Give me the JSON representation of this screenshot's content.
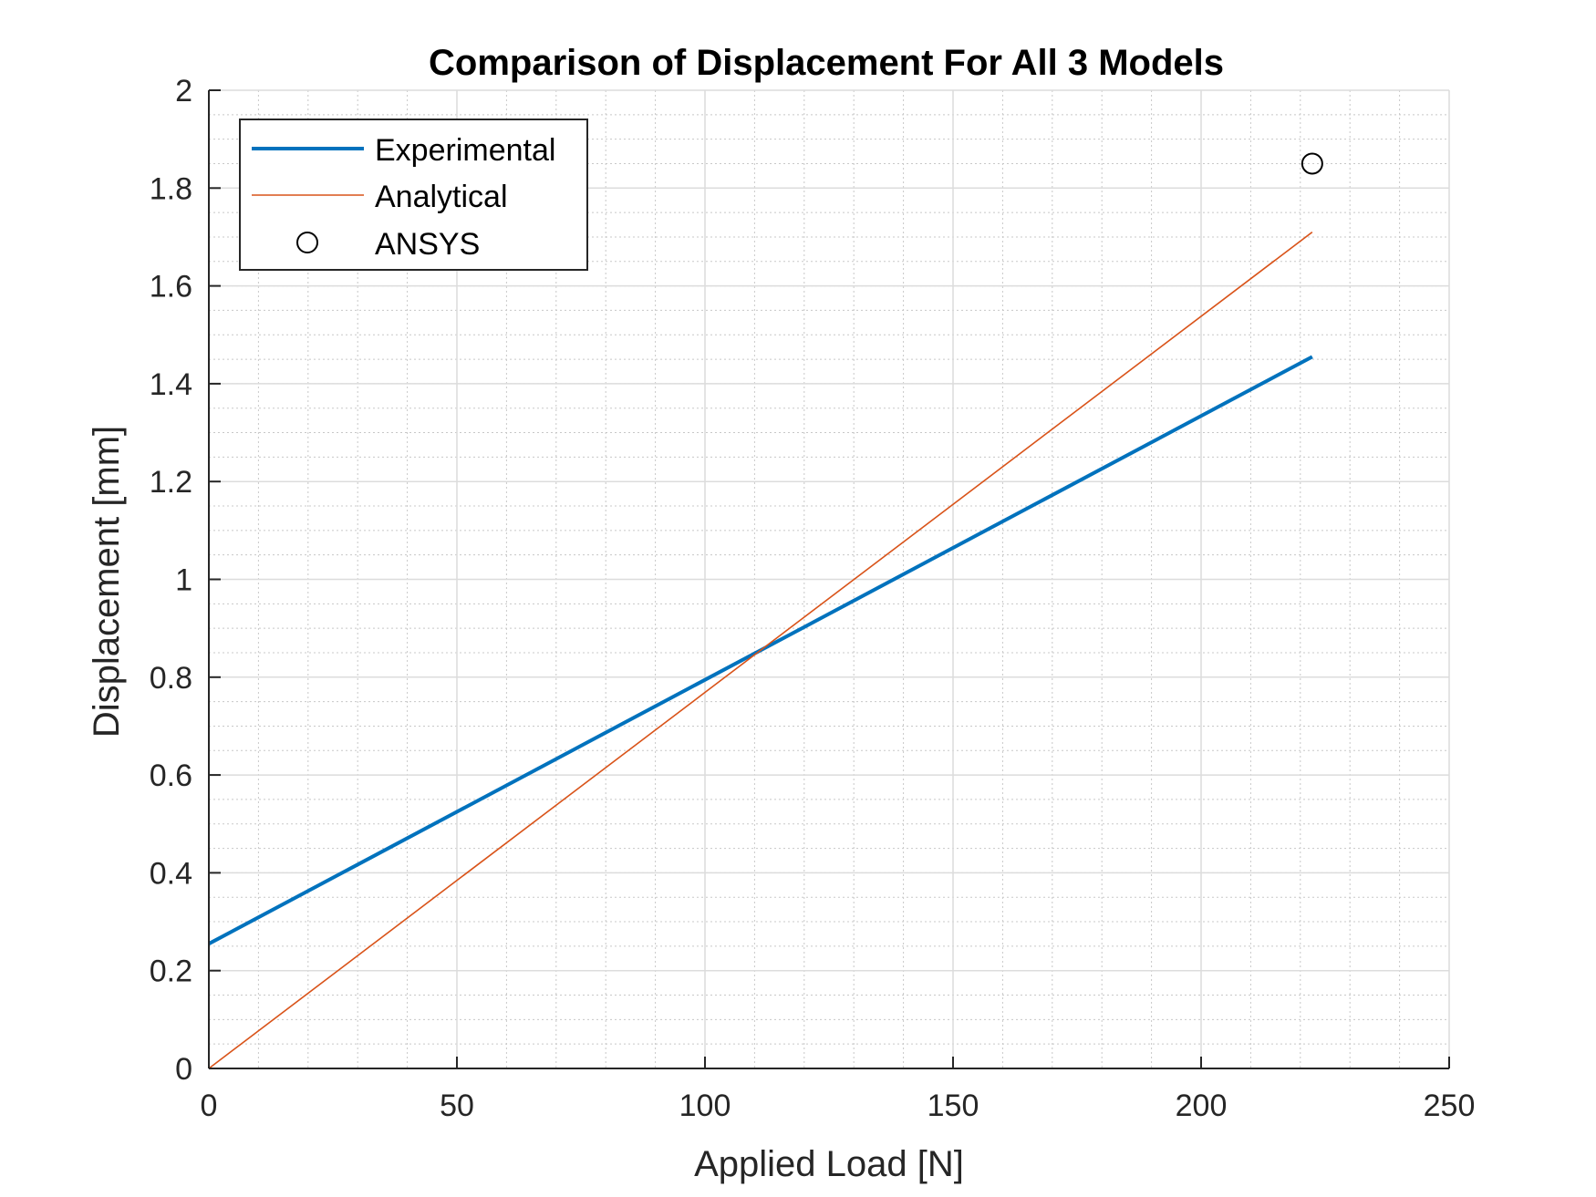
{
  "colors": {
    "experimental": "#0072BD",
    "analytical": "#D95319",
    "ansys": "#000000",
    "axis": "#262626",
    "grid_major": "#dcdcdc",
    "grid_minor": "#c8c8c8"
  },
  "chart_data": {
    "type": "line",
    "title": "Comparison of Displacement For All 3 Models",
    "xlabel": "Applied Load [N]",
    "ylabel": "Displacement [mm]",
    "xlim": [
      0,
      250
    ],
    "ylim": [
      0,
      2
    ],
    "xticks": [
      0,
      50,
      100,
      150,
      200,
      250
    ],
    "yticks": [
      0,
      0.2,
      0.4,
      0.6,
      0.8,
      1,
      1.2,
      1.4,
      1.6,
      1.8,
      2
    ],
    "xtick_labels": [
      "0",
      "50",
      "100",
      "150",
      "200",
      "250"
    ],
    "ytick_labels": [
      "0",
      "0.2",
      "0.4",
      "0.6",
      "0.8",
      "1",
      "1.2",
      "1.4",
      "1.6",
      "1.8",
      "2"
    ],
    "grid": "major and minor",
    "legend_position": "top-left",
    "series": [
      {
        "name": "Experimental",
        "style": "line-thick",
        "x": [
          0,
          222.4
        ],
        "y": [
          0.255,
          1.455
        ]
      },
      {
        "name": "Analytical",
        "style": "line-thin",
        "x": [
          0,
          222.4
        ],
        "y": [
          0,
          1.71
        ]
      },
      {
        "name": "ANSYS",
        "style": "marker-circle",
        "x": [
          222.4
        ],
        "y": [
          1.85
        ]
      }
    ]
  }
}
